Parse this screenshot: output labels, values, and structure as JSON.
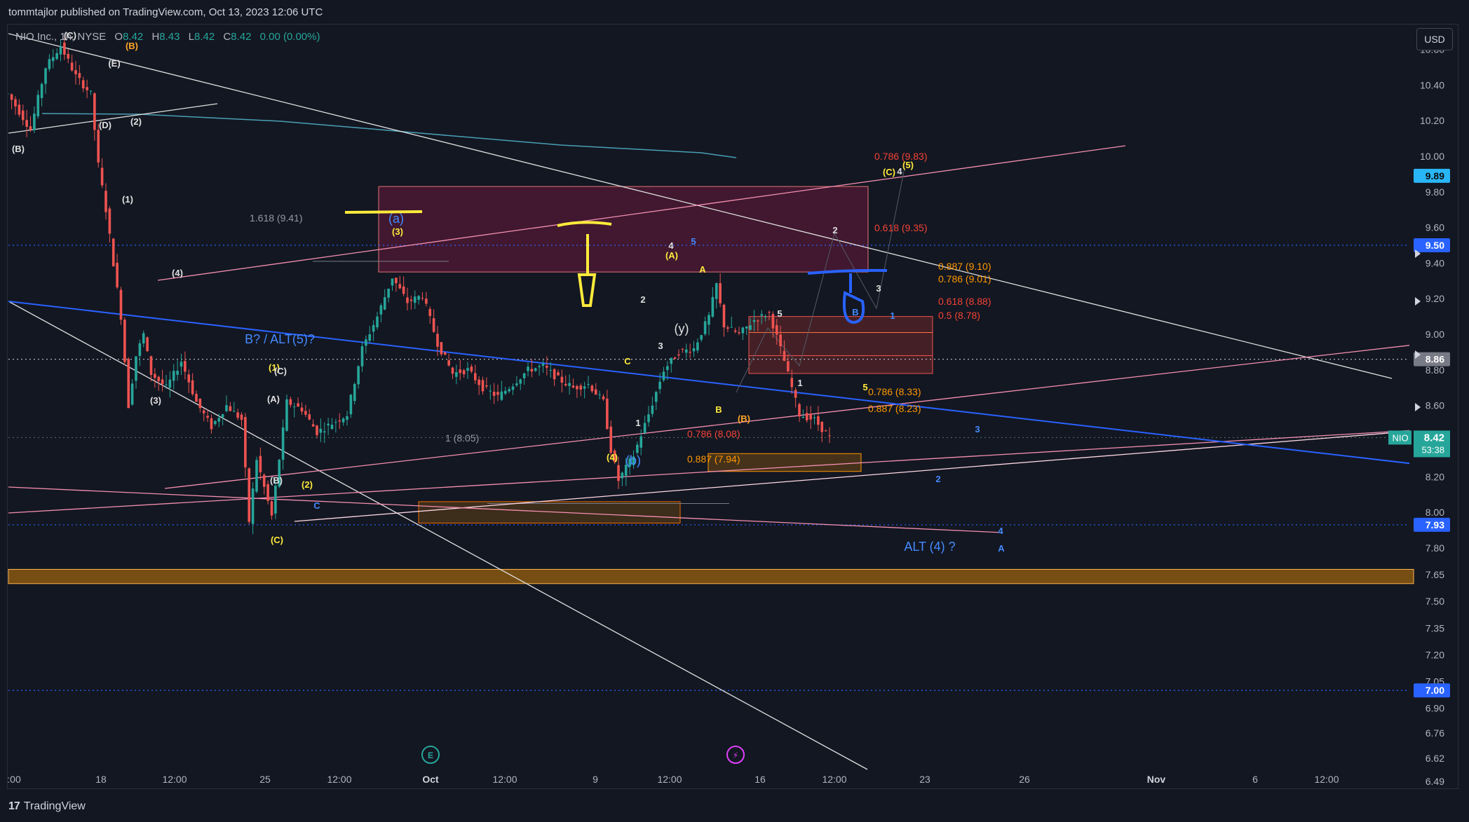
{
  "header": {
    "publisher_line": "tommtajlor published on TradingView.com, Oct 13, 2023 12:06 UTC"
  },
  "legend": {
    "symbol": "NIO Inc., 1h, NYSE",
    "open_label": "O",
    "open": "8.42",
    "high_label": "H",
    "high": "8.43",
    "low_label": "L",
    "low": "8.42",
    "close_label": "C",
    "close": "8.42",
    "change": "0.00 (0.00%)"
  },
  "currency_button": "USD",
  "footer": {
    "logo_mark": "17",
    "brand": "TradingView"
  },
  "colors": {
    "background": "#131722",
    "grid_line": "#1f2330",
    "axis_text": "#b2b5be",
    "up_candle": "#26a69a",
    "down_candle": "#ef5350",
    "trend_blue": "#2962ff",
    "trend_pink": "#f48fb1",
    "trend_white": "#e0e0e0",
    "fib_red": "#f44336",
    "fib_orange": "#ff9800",
    "label_yellow": "#ffeb3b",
    "ema_teal": "#4a9fb5"
  },
  "chart_data": {
    "type": "candlestick",
    "ticker": "NIO",
    "y_axis": {
      "scale": "linear",
      "ylim": [
        6.45,
        10.72
      ],
      "ticks": [
        "10.60",
        "10.40",
        "10.20",
        "10.00",
        "9.80",
        "9.60",
        "9.40",
        "9.20",
        "9.00",
        "8.80",
        "8.60",
        "8.40",
        "8.20",
        "8.00",
        "7.80",
        "7.65",
        "7.50",
        "7.35",
        "7.20",
        "7.05",
        "6.90",
        "6.76",
        "6.62",
        "6.49"
      ]
    },
    "x_axis": {
      "ticks": [
        ":00",
        "18",
        "12:00",
        "25",
        "12:00",
        "Oct",
        "12:00",
        "9",
        "12:00",
        "16",
        "12:00",
        "23",
        "26",
        "Nov",
        "6",
        "12:00"
      ]
    },
    "price_path": [
      [
        -0.5,
        10.35
      ],
      [
        1,
        10.15
      ],
      [
        2,
        10.5
      ],
      [
        3,
        10.62
      ],
      [
        4,
        10.45
      ],
      [
        5,
        10.35
      ],
      [
        5.5,
        9.95
      ],
      [
        6,
        9.7
      ],
      [
        7,
        9.1
      ],
      [
        7.5,
        8.6
      ],
      [
        8,
        8.88
      ],
      [
        8.5,
        9.0
      ],
      [
        9,
        8.78
      ],
      [
        10,
        8.7
      ],
      [
        11,
        8.85
      ],
      [
        12,
        8.62
      ],
      [
        13,
        8.48
      ],
      [
        14,
        8.6
      ],
      [
        15,
        8.52
      ],
      [
        15.5,
        7.95
      ],
      [
        16,
        8.3
      ],
      [
        17,
        7.98
      ],
      [
        18,
        8.62
      ],
      [
        19,
        8.58
      ],
      [
        20,
        8.45
      ],
      [
        21,
        8.5
      ],
      [
        22,
        8.55
      ],
      [
        23,
        8.92
      ],
      [
        24,
        9.1
      ],
      [
        25,
        9.32
      ],
      [
        26,
        9.18
      ],
      [
        27,
        9.22
      ],
      [
        28,
        8.95
      ],
      [
        29,
        8.78
      ],
      [
        30,
        8.8
      ],
      [
        31,
        8.7
      ],
      [
        32,
        8.65
      ],
      [
        33,
        8.72
      ],
      [
        34,
        8.8
      ],
      [
        35,
        8.82
      ],
      [
        36,
        8.75
      ],
      [
        37,
        8.7
      ],
      [
        38,
        8.72
      ],
      [
        39,
        8.62
      ],
      [
        39.5,
        8.35
      ],
      [
        40,
        8.18
      ],
      [
        41,
        8.32
      ],
      [
        42,
        8.55
      ],
      [
        43,
        8.8
      ],
      [
        44,
        8.9
      ],
      [
        45,
        8.92
      ],
      [
        46,
        9.1
      ],
      [
        46.5,
        9.28
      ],
      [
        47,
        9.05
      ],
      [
        48,
        9.0
      ],
      [
        49,
        9.08
      ],
      [
        50,
        9.12
      ],
      [
        51,
        8.85
      ],
      [
        52,
        8.55
      ],
      [
        53,
        8.52
      ],
      [
        54,
        8.42
      ]
    ],
    "last_price": "8.42",
    "bar_countdown": "53:38",
    "price_tags": [
      {
        "price": "9.89",
        "kind": "cyan"
      },
      {
        "price": "9.50",
        "kind": "blue"
      },
      {
        "price": "8.86",
        "kind": "gray"
      },
      {
        "price": "7.93",
        "kind": "blue"
      },
      {
        "price": "7.00",
        "kind": "blue"
      }
    ],
    "horizontal_lines": [
      9.5,
      8.86,
      8.42,
      7.93,
      7.0
    ],
    "zones": [
      {
        "name": "pink-upper",
        "top": 9.83,
        "bottom": 9.35
      },
      {
        "name": "red-right",
        "top": 9.1,
        "bottom": 8.78
      },
      {
        "name": "orange-left",
        "top": 8.06,
        "bottom": 7.94
      },
      {
        "name": "orange-mid",
        "top": 8.33,
        "bottom": 8.23
      },
      {
        "name": "gold-bottom",
        "top": 7.68,
        "bottom": 7.6
      }
    ],
    "fib_labels": [
      {
        "text": "0.786 (9.83)",
        "color": "red"
      },
      {
        "text": "0.618 (9.35)",
        "color": "red"
      },
      {
        "text": "0.887 (9.10)",
        "color": "orange"
      },
      {
        "text": "0.786 (9.01)",
        "color": "orange"
      },
      {
        "text": "0.618 (8.88)",
        "color": "red"
      },
      {
        "text": "0.5 (8.78)",
        "color": "red"
      },
      {
        "text": "0.786 (8.33)",
        "color": "orange"
      },
      {
        "text": "0.887 (8.23)",
        "color": "orange"
      },
      {
        "text": "0.786 (8.08)",
        "color": "red"
      },
      {
        "text": "0.887 (7.94)",
        "color": "orange"
      },
      {
        "text": "1.618 (9.41)",
        "color": "gray"
      },
      {
        "text": "1 (8.05)",
        "color": "gray"
      }
    ],
    "wave_labels": [
      {
        "text": "(C)",
        "color": "white"
      },
      {
        "text": "(B)",
        "color": "orange"
      },
      {
        "text": "(E)",
        "color": "white"
      },
      {
        "text": "(D)",
        "color": "white"
      },
      {
        "text": "(2)",
        "color": "white"
      },
      {
        "text": "(B)",
        "color": "white"
      },
      {
        "text": "(1)",
        "color": "white"
      },
      {
        "text": "(4)",
        "color": "white"
      },
      {
        "text": "(3)",
        "color": "white"
      },
      {
        "text": "(1)",
        "color": "yellow"
      },
      {
        "text": "(C)",
        "color": "white"
      },
      {
        "text": "(A)",
        "color": "white"
      },
      {
        "text": "(B)",
        "color": "white"
      },
      {
        "text": "(2)",
        "color": "yellow"
      },
      {
        "text": "(3)",
        "color": "yellow"
      },
      {
        "text": "(a)",
        "color": "blue"
      },
      {
        "text": "(4)",
        "color": "yellow"
      },
      {
        "text": "(b)",
        "color": "blue"
      },
      {
        "text": "(A)",
        "color": "yellow"
      },
      {
        "text": "(B)",
        "color": "orange"
      },
      {
        "text": "(C)",
        "color": "yellow"
      },
      {
        "text": "(5)",
        "color": "yellow"
      },
      {
        "text": "(C)",
        "color": "yellow"
      },
      {
        "text": "(y)",
        "color": "white"
      },
      {
        "text": "A",
        "color": "yellow"
      },
      {
        "text": "B",
        "color": "yellow"
      },
      {
        "text": "C",
        "color": "yellow"
      },
      {
        "text": "1",
        "color": "white"
      },
      {
        "text": "2",
        "color": "white"
      },
      {
        "text": "3",
        "color": "white"
      },
      {
        "text": "4",
        "color": "white"
      },
      {
        "text": "5",
        "color": "white"
      },
      {
        "text": "1",
        "color": "white"
      },
      {
        "text": "2",
        "color": "white"
      },
      {
        "text": "3",
        "color": "white"
      },
      {
        "text": "4",
        "color": "white"
      },
      {
        "text": "5",
        "color": "yellow"
      },
      {
        "text": "1",
        "color": "blue"
      },
      {
        "text": "2",
        "color": "blue"
      },
      {
        "text": "3",
        "color": "blue"
      },
      {
        "text": "4",
        "color": "blue"
      },
      {
        "text": "5",
        "color": "blue"
      },
      {
        "text": "ALT (4) ?",
        "color": "blue"
      },
      {
        "text": "B? / ALT(5)?",
        "color": "blue"
      },
      {
        "text": "A",
        "color": "blue"
      },
      {
        "text": "B",
        "color": "blue"
      },
      {
        "text": "C",
        "color": "blue"
      },
      {
        "text": "B",
        "color": "blue"
      }
    ],
    "event_icons": [
      "earnings-icon",
      "dividend-flash-icon"
    ],
    "grid": false
  }
}
